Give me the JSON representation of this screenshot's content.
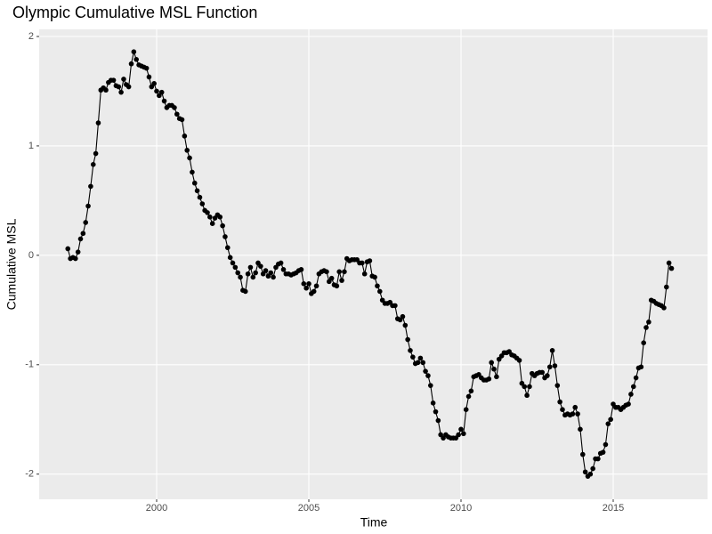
{
  "chart_data": {
    "type": "line",
    "title": "Olympic Cumulative MSL Function",
    "x_label": "Time",
    "y_label": "Cumulative MSL",
    "x": [
      1997.083,
      1997.167,
      1997.25,
      1997.333,
      1997.417,
      1997.5,
      1997.583,
      1997.667,
      1997.75,
      1997.833,
      1997.917,
      1998,
      1998.083,
      1998.167,
      1998.25,
      1998.333,
      1998.417,
      1998.5,
      1998.583,
      1998.667,
      1998.75,
      1998.833,
      1998.917,
      1999,
      1999.083,
      1999.167,
      1999.25,
      1999.333,
      1999.417,
      1999.5,
      1999.583,
      1999.667,
      1999.75,
      1999.833,
      1999.917,
      2000,
      2000.083,
      2000.167,
      2000.25,
      2000.333,
      2000.417,
      2000.5,
      2000.583,
      2000.667,
      2000.75,
      2000.833,
      2000.917,
      2001,
      2001.083,
      2001.167,
      2001.25,
      2001.333,
      2001.417,
      2001.5,
      2001.583,
      2001.667,
      2001.75,
      2001.833,
      2001.917,
      2002,
      2002.083,
      2002.167,
      2002.25,
      2002.333,
      2002.417,
      2002.5,
      2002.583,
      2002.667,
      2002.75,
      2002.833,
      2002.917,
      2003,
      2003.083,
      2003.167,
      2003.25,
      2003.333,
      2003.417,
      2003.5,
      2003.583,
      2003.667,
      2003.75,
      2003.833,
      2003.917,
      2004,
      2004.083,
      2004.167,
      2004.25,
      2004.333,
      2004.417,
      2004.5,
      2004.583,
      2004.667,
      2004.75,
      2004.833,
      2004.917,
      2005,
      2005.083,
      2005.167,
      2005.25,
      2005.333,
      2005.417,
      2005.5,
      2005.583,
      2005.667,
      2005.75,
      2005.833,
      2005.917,
      2006,
      2006.083,
      2006.167,
      2006.25,
      2006.333,
      2006.417,
      2006.5,
      2006.583,
      2006.667,
      2006.75,
      2006.833,
      2006.917,
      2007,
      2007.083,
      2007.167,
      2007.25,
      2007.333,
      2007.417,
      2007.5,
      2007.583,
      2007.667,
      2007.75,
      2007.833,
      2007.917,
      2008,
      2008.083,
      2008.167,
      2008.25,
      2008.333,
      2008.417,
      2008.5,
      2008.583,
      2008.667,
      2008.75,
      2008.833,
      2008.917,
      2009,
      2009.083,
      2009.167,
      2009.25,
      2009.333,
      2009.417,
      2009.5,
      2009.583,
      2009.667,
      2009.75,
      2009.833,
      2009.917,
      2010,
      2010.083,
      2010.167,
      2010.25,
      2010.333,
      2010.417,
      2010.5,
      2010.583,
      2010.667,
      2010.75,
      2010.833,
      2010.917,
      2011,
      2011.083,
      2011.167,
      2011.25,
      2011.333,
      2011.417,
      2011.5,
      2011.583,
      2011.667,
      2011.75,
      2011.833,
      2011.917,
      2012,
      2012.083,
      2012.167,
      2012.25,
      2012.333,
      2012.417,
      2012.5,
      2012.583,
      2012.667,
      2012.75,
      2012.833,
      2012.917,
      2013,
      2013.083,
      2013.167,
      2013.25,
      2013.333,
      2013.417,
      2013.5,
      2013.583,
      2013.667,
      2013.75,
      2013.833,
      2013.917,
      2014,
      2014.083,
      2014.167,
      2014.25,
      2014.333,
      2014.417,
      2014.5,
      2014.583,
      2014.667,
      2014.75,
      2014.833,
      2014.917,
      2015,
      2015.083,
      2015.167,
      2015.25,
      2015.333,
      2015.417,
      2015.5,
      2015.583,
      2015.667,
      2015.75,
      2015.833,
      2015.917,
      2016,
      2016.083,
      2016.167,
      2016.25,
      2016.333,
      2016.417,
      2016.5,
      2016.583,
      2016.667,
      2016.75,
      2016.833,
      2016.917
    ],
    "values": [
      0.06,
      -0.03,
      -0.02,
      -0.03,
      0.03,
      0.15,
      0.2,
      0.3,
      0.45,
      0.63,
      0.83,
      0.93,
      1.21,
      1.51,
      1.53,
      1.51,
      1.58,
      1.6,
      1.6,
      1.55,
      1.54,
      1.49,
      1.61,
      1.56,
      1.54,
      1.75,
      1.86,
      1.79,
      1.74,
      1.73,
      1.72,
      1.71,
      1.63,
      1.54,
      1.57,
      1.5,
      1.46,
      1.49,
      1.41,
      1.35,
      1.37,
      1.37,
      1.35,
      1.29,
      1.25,
      1.24,
      1.09,
      0.96,
      0.89,
      0.76,
      0.66,
      0.59,
      0.53,
      0.47,
      0.41,
      0.39,
      0.35,
      0.29,
      0.34,
      0.37,
      0.35,
      0.27,
      0.17,
      0.07,
      -0.02,
      -0.07,
      -0.11,
      -0.16,
      -0.2,
      -0.32,
      -0.33,
      -0.17,
      -0.11,
      -0.2,
      -0.16,
      -0.07,
      -0.1,
      -0.17,
      -0.14,
      -0.19,
      -0.16,
      -0.2,
      -0.11,
      -0.08,
      -0.07,
      -0.13,
      -0.17,
      -0.17,
      -0.18,
      -0.17,
      -0.16,
      -0.14,
      -0.13,
      -0.26,
      -0.3,
      -0.26,
      -0.35,
      -0.33,
      -0.28,
      -0.17,
      -0.15,
      -0.14,
      -0.15,
      -0.24,
      -0.21,
      -0.27,
      -0.28,
      -0.15,
      -0.23,
      -0.15,
      -0.03,
      -0.05,
      -0.04,
      -0.04,
      -0.04,
      -0.07,
      -0.07,
      -0.17,
      -0.06,
      -0.05,
      -0.19,
      -0.2,
      -0.28,
      -0.33,
      -0.41,
      -0.44,
      -0.44,
      -0.43,
      -0.46,
      -0.46,
      -0.58,
      -0.59,
      -0.56,
      -0.64,
      -0.77,
      -0.87,
      -0.93,
      -0.99,
      -0.98,
      -0.94,
      -0.98,
      -1.06,
      -1.1,
      -1.19,
      -1.35,
      -1.43,
      -1.51,
      -1.64,
      -1.67,
      -1.64,
      -1.66,
      -1.67,
      -1.67,
      -1.67,
      -1.64,
      -1.59,
      -1.63,
      -1.41,
      -1.29,
      -1.24,
      -1.11,
      -1.1,
      -1.09,
      -1.12,
      -1.14,
      -1.14,
      -1.13,
      -0.98,
      -1.04,
      -1.11,
      -0.95,
      -0.92,
      -0.89,
      -0.89,
      -0.88,
      -0.91,
      -0.92,
      -0.94,
      -0.96,
      -1.17,
      -1.2,
      -1.28,
      -1.2,
      -1.08,
      -1.1,
      -1.08,
      -1.07,
      -1.07,
      -1.12,
      -1.1,
      -1.02,
      -0.87,
      -1.01,
      -1.19,
      -1.34,
      -1.41,
      -1.46,
      -1.45,
      -1.46,
      -1.45,
      -1.39,
      -1.45,
      -1.59,
      -1.82,
      -1.98,
      -2.02,
      -2.0,
      -1.95,
      -1.86,
      -1.86,
      -1.81,
      -1.8,
      -1.73,
      -1.54,
      -1.5,
      -1.36,
      -1.39,
      -1.39,
      -1.41,
      -1.39,
      -1.37,
      -1.36,
      -1.27,
      -1.2,
      -1.12,
      -1.03,
      -1.02,
      -0.8,
      -0.66,
      -0.61,
      -0.41,
      -0.42,
      -0.44,
      -0.45,
      -0.46,
      -0.48,
      -0.29,
      -0.07,
      -0.12
    ],
    "color": "#000000",
    "xlim": [
      1996.14,
      2018.1
    ],
    "xticks": [
      2000,
      2005,
      2010,
      2015
    ],
    "ylim": [
      -2.23,
      2.065
    ],
    "yticks": [
      -2,
      -1,
      0,
      1,
      2
    ],
    "grid": true
  }
}
